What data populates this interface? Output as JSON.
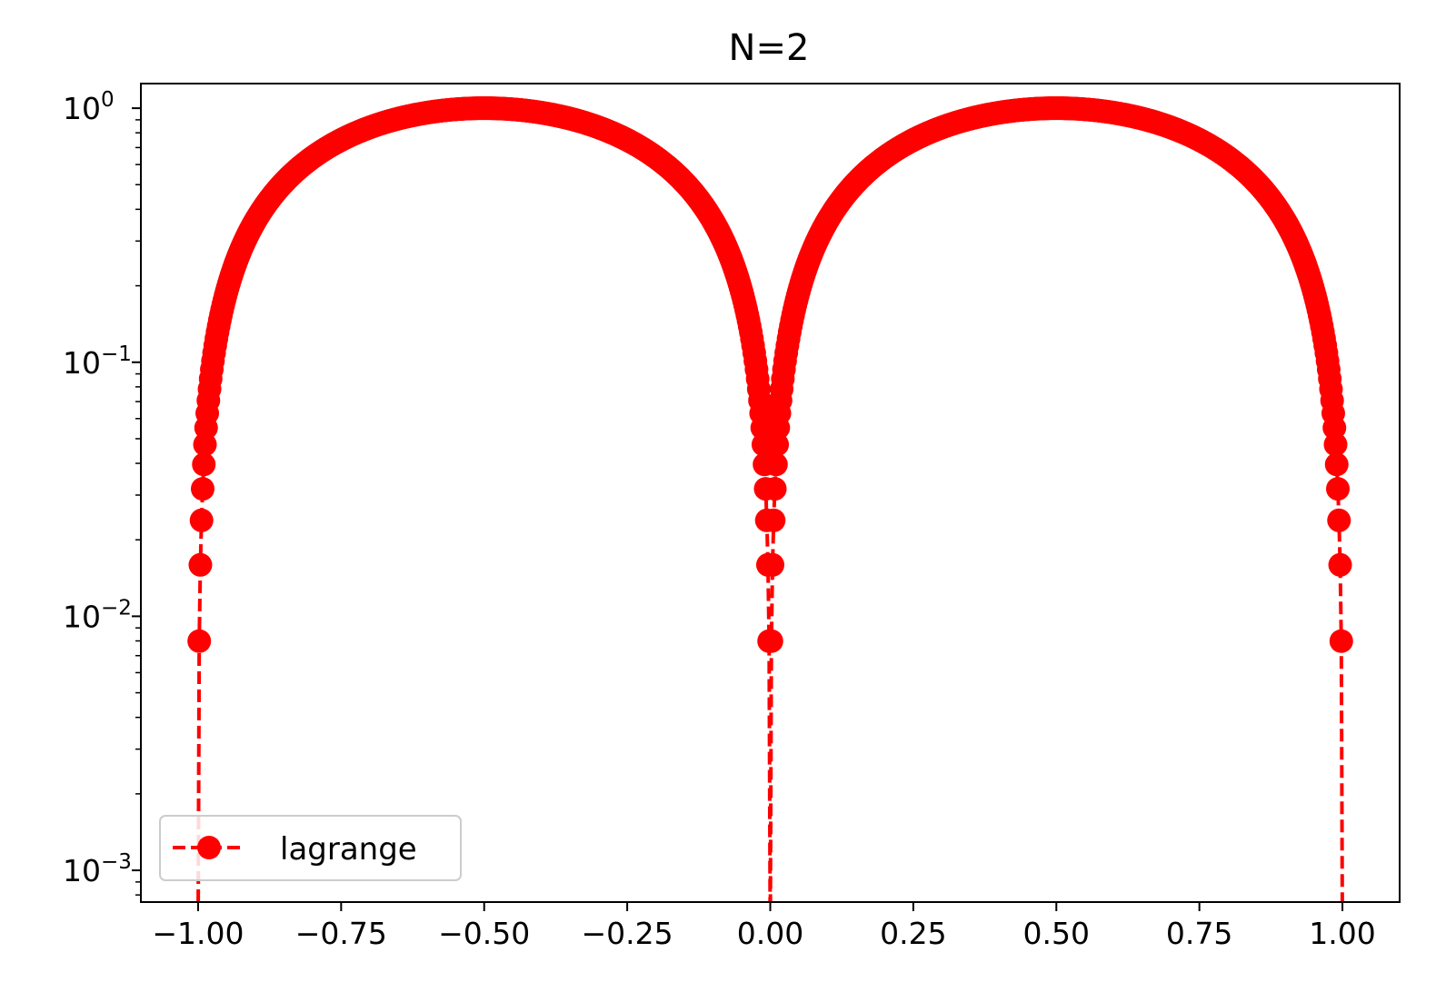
{
  "chart_data": {
    "type": "line",
    "title": "N=2",
    "xlabel": "",
    "ylabel": "",
    "xlim": [
      -1.1,
      1.1
    ],
    "ylim": [
      0.00075,
      1.25
    ],
    "yscale": "log",
    "grid": false,
    "legend_position": "bottom-left",
    "x_ticks": [
      -1.0,
      -0.75,
      -0.5,
      -0.25,
      0.0,
      0.25,
      0.5,
      0.75,
      1.0
    ],
    "x_tick_labels": [
      "−1.00",
      "−0.75",
      "−0.50",
      "−0.25",
      "0.00",
      "0.25",
      "0.50",
      "0.75",
      "1.00"
    ],
    "y_ticks": [
      {
        "value": 1,
        "base": "10",
        "exp": "0"
      },
      {
        "value": 0.1,
        "base": "10",
        "exp": "−1"
      },
      {
        "value": 0.01,
        "base": "10",
        "exp": "−2"
      },
      {
        "value": 0.001,
        "base": "10",
        "exp": "−3"
      }
    ],
    "series": [
      {
        "name": "lagrange",
        "color": "#ff0000",
        "line_style": "dashed",
        "marker": "circle",
        "function": "|x| * (1 - |x|) * 4",
        "x_range": [
          -1.0,
          1.0
        ],
        "n_points": 1001
      }
    ]
  }
}
